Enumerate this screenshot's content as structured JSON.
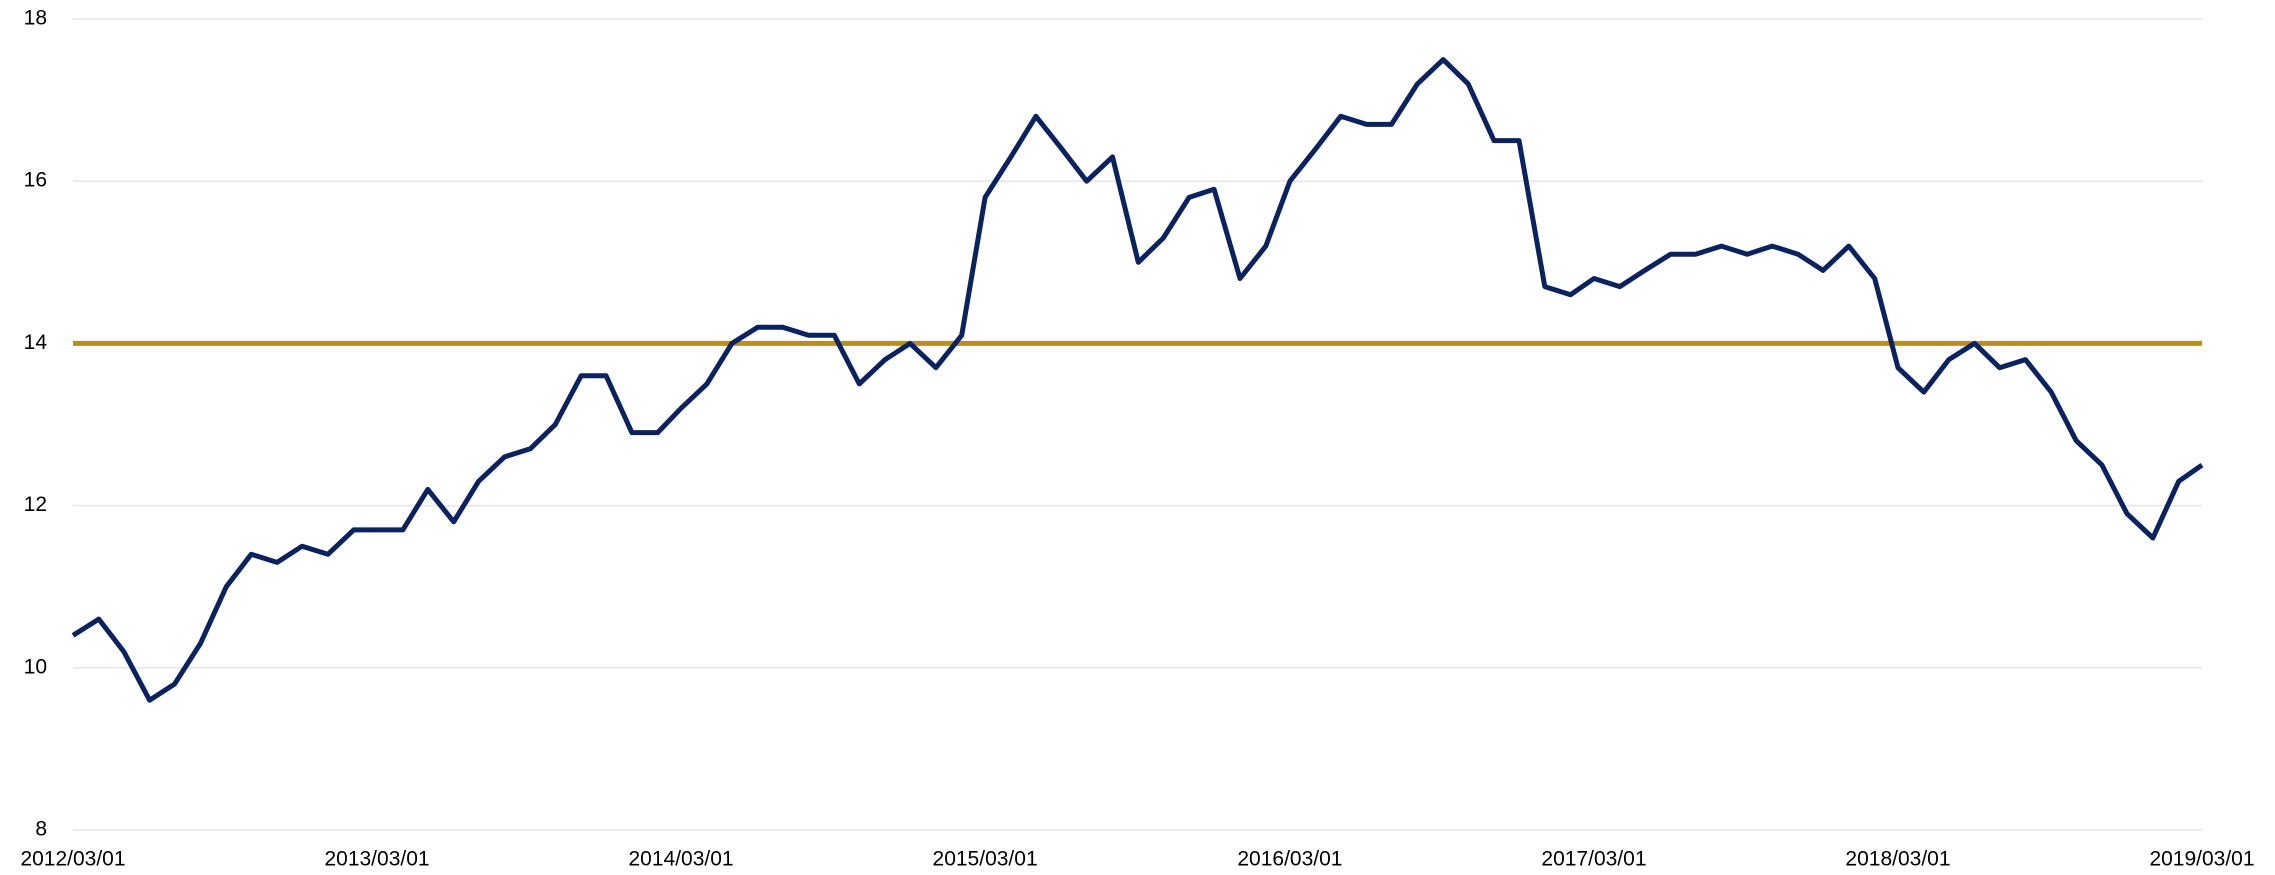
{
  "chart_data": {
    "type": "line",
    "x": [
      "2012/03/01",
      "2012/04/01",
      "2012/05/01",
      "2012/06/01",
      "2012/07/01",
      "2012/08/01",
      "2012/09/01",
      "2012/10/01",
      "2012/11/01",
      "2012/12/01",
      "2013/01/01",
      "2013/02/01",
      "2013/03/01",
      "2013/04/01",
      "2013/05/01",
      "2013/06/01",
      "2013/07/01",
      "2013/08/01",
      "2013/09/01",
      "2013/10/01",
      "2013/11/01",
      "2013/12/01",
      "2014/01/01",
      "2014/02/01",
      "2014/03/01",
      "2014/04/01",
      "2014/05/01",
      "2014/06/01",
      "2014/07/01",
      "2014/08/01",
      "2014/09/01",
      "2014/10/01",
      "2014/11/01",
      "2014/12/01",
      "2015/01/01",
      "2015/02/01",
      "2015/03/01",
      "2015/04/01",
      "2015/05/01",
      "2015/06/01",
      "2015/07/01",
      "2015/08/01",
      "2015/09/01",
      "2015/10/01",
      "2015/11/01",
      "2015/12/01",
      "2016/01/01",
      "2016/02/01",
      "2016/03/01",
      "2016/04/01",
      "2016/05/01",
      "2016/06/01",
      "2016/07/01",
      "2016/08/01",
      "2016/09/01",
      "2016/10/01",
      "2016/11/01",
      "2016/12/01",
      "2017/01/01",
      "2017/02/01",
      "2017/03/01",
      "2017/04/01",
      "2017/05/01",
      "2017/06/01",
      "2017/07/01",
      "2017/08/01",
      "2017/09/01",
      "2017/10/01",
      "2017/11/01",
      "2017/12/01",
      "2018/01/01",
      "2018/02/01",
      "2018/03/01",
      "2018/04/01",
      "2018/05/01",
      "2018/06/01",
      "2018/07/01",
      "2018/08/01",
      "2018/09/01",
      "2018/10/01",
      "2018/11/01",
      "2018/12/01",
      "2019/01/01",
      "2019/02/01",
      "2019/03/01"
    ],
    "series": [
      {
        "color": "#0b2260",
        "values": [
          10.4,
          10.6,
          10.2,
          9.6,
          9.8,
          10.3,
          11.0,
          11.4,
          11.3,
          11.5,
          11.4,
          11.7,
          11.7,
          11.7,
          12.2,
          11.8,
          12.3,
          12.6,
          12.7,
          13.0,
          13.6,
          13.6,
          12.9,
          12.9,
          13.2,
          13.5,
          14.0,
          14.2,
          14.2,
          14.1,
          14.1,
          13.5,
          13.8,
          14.0,
          13.7,
          14.1,
          15.8,
          16.3,
          16.8,
          16.4,
          16.0,
          16.3,
          15.0,
          15.3,
          15.8,
          15.9,
          14.8,
          15.2,
          16.0,
          16.4,
          16.8,
          16.7,
          16.7,
          17.2,
          17.5,
          17.2,
          16.5,
          16.5,
          14.7,
          14.6,
          14.8,
          14.7,
          14.9,
          15.1,
          15.1,
          15.2,
          15.1,
          15.2,
          15.1,
          14.9,
          15.2,
          14.8,
          13.7,
          13.4,
          13.8,
          14.0,
          13.7,
          13.8,
          13.4,
          12.8,
          12.5,
          11.9,
          11.6,
          12.3,
          12.5
        ]
      }
    ],
    "reference_line": {
      "value": 14,
      "color": "#b8911a"
    },
    "xlim": [
      "2012/03/01",
      "2019/03/01"
    ],
    "xticks": [
      "2012/03/01",
      "2013/03/01",
      "2014/03/01",
      "2015/03/01",
      "2016/03/01",
      "2017/03/01",
      "2018/03/01",
      "2019/03/01"
    ],
    "ylim": [
      8,
      18
    ],
    "yticks": [
      8,
      10,
      12,
      14,
      16,
      18
    ],
    "grid": true
  }
}
